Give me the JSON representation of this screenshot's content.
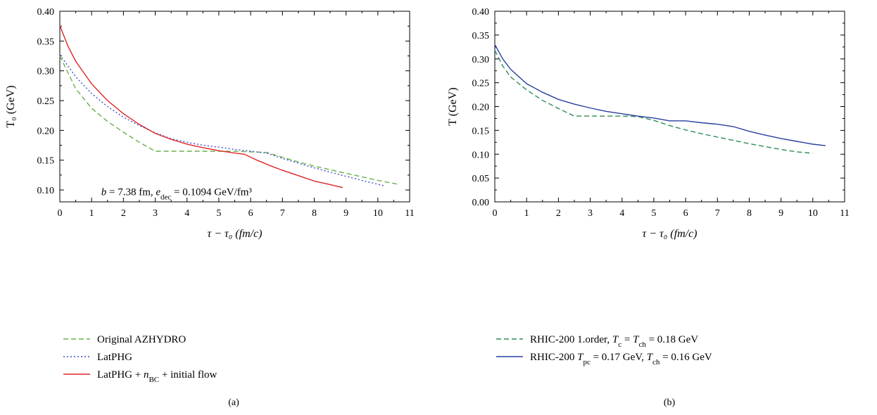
{
  "chart_data": [
    {
      "type": "line",
      "id": "a",
      "caption": "(a)",
      "xlabel": "τ − τ₀ (fm/c)",
      "ylabel": "T₀ (GeV)",
      "xlim": [
        0,
        11
      ],
      "ylim": [
        0.08,
        0.4
      ],
      "xticks": [
        "0",
        "1",
        "2",
        "3",
        "4",
        "5",
        "6",
        "7",
        "8",
        "9",
        "10",
        "11"
      ],
      "yticks": [
        "0.10",
        "0.15",
        "0.20",
        "0.25",
        "0.30",
        "0.35",
        "0.40"
      ],
      "annotation": "b = 7.38 fm, e_dec = 0.1094 GeV/fm³",
      "legend_position": "below",
      "series": [
        {
          "name": "Original AZHYDRO",
          "style": "dashed",
          "color": "#6ab04c",
          "x": [
            0,
            0.5,
            1,
            1.5,
            2,
            2.5,
            3,
            3.5,
            4,
            4.5,
            5,
            5.5,
            6,
            6.5,
            7,
            7.5,
            8,
            8.5,
            9,
            9.5,
            10,
            10.6
          ],
          "y": [
            0.325,
            0.27,
            0.237,
            0.215,
            0.197,
            0.18,
            0.165,
            0.165,
            0.165,
            0.165,
            0.165,
            0.165,
            0.164,
            0.163,
            0.155,
            0.147,
            0.14,
            0.134,
            0.128,
            0.122,
            0.116,
            0.11
          ]
        },
        {
          "name": "LatPHG",
          "style": "dotted",
          "color": "#3b4fc8",
          "x": [
            0,
            0.5,
            1,
            1.5,
            2,
            2.5,
            3,
            3.5,
            4,
            4.5,
            5,
            5.5,
            6,
            6.5,
            7,
            7.5,
            8,
            8.5,
            9,
            9.5,
            10.2
          ],
          "y": [
            0.327,
            0.29,
            0.262,
            0.24,
            0.222,
            0.208,
            0.196,
            0.186,
            0.18,
            0.175,
            0.172,
            0.168,
            0.165,
            0.162,
            0.153,
            0.145,
            0.137,
            0.13,
            0.123,
            0.116,
            0.107
          ]
        },
        {
          "name": "LatPHG + n_BC + initial flow",
          "style": "solid",
          "color": "#e02424",
          "x": [
            0,
            0.25,
            0.5,
            1,
            1.5,
            2,
            2.5,
            3,
            3.5,
            4,
            4.5,
            5,
            5.5,
            5.8,
            6.2,
            6.6,
            7,
            7.5,
            8,
            8.5,
            8.9
          ],
          "y": [
            0.376,
            0.342,
            0.316,
            0.278,
            0.25,
            0.228,
            0.21,
            0.195,
            0.185,
            0.177,
            0.171,
            0.166,
            0.162,
            0.16,
            0.15,
            0.141,
            0.133,
            0.124,
            0.115,
            0.109,
            0.104
          ]
        }
      ]
    },
    {
      "type": "line",
      "id": "b",
      "caption": "(b)",
      "xlabel": "τ − τ₀ (fm/c)",
      "ylabel": "T (GeV)",
      "xlim": [
        0,
        11
      ],
      "ylim": [
        0,
        0.4
      ],
      "xticks": [
        "0",
        "1",
        "2",
        "3",
        "4",
        "5",
        "6",
        "7",
        "8",
        "9",
        "10",
        "11"
      ],
      "yticks": [
        "0.00",
        "0.05",
        "0.10",
        "0.15",
        "0.20",
        "0.25",
        "0.30",
        "0.35",
        "0.40"
      ],
      "legend_position": "below",
      "series": [
        {
          "name": "RHIC-200 1.order, T_c = T_ch = 0.18 GeV",
          "style": "dashed",
          "color": "#2e8b57",
          "x": [
            0,
            0.25,
            0.5,
            1,
            1.5,
            2,
            2.5,
            3,
            3.5,
            4,
            4.5,
            5,
            5.5,
            6,
            6.5,
            7,
            7.5,
            8,
            8.5,
            9,
            9.5,
            10
          ],
          "y": [
            0.318,
            0.285,
            0.262,
            0.235,
            0.213,
            0.196,
            0.18,
            0.18,
            0.18,
            0.18,
            0.179,
            0.171,
            0.16,
            0.151,
            0.143,
            0.136,
            0.129,
            0.122,
            0.116,
            0.11,
            0.105,
            0.102
          ]
        },
        {
          "name": "RHIC-200 T_pc = 0.17 GeV, T_ch = 0.16 GeV",
          "style": "solid",
          "color": "#2a3f9e",
          "x": [
            0,
            0.25,
            0.5,
            1,
            1.5,
            2,
            2.5,
            3,
            3.5,
            4,
            4.5,
            5,
            5.5,
            6,
            6.5,
            7,
            7.5,
            8,
            8.5,
            9,
            9.5,
            10,
            10.4
          ],
          "y": [
            0.33,
            0.3,
            0.278,
            0.248,
            0.23,
            0.215,
            0.205,
            0.197,
            0.19,
            0.185,
            0.18,
            0.176,
            0.17,
            0.17,
            0.166,
            0.163,
            0.158,
            0.148,
            0.14,
            0.133,
            0.127,
            0.121,
            0.118
          ]
        }
      ]
    }
  ]
}
